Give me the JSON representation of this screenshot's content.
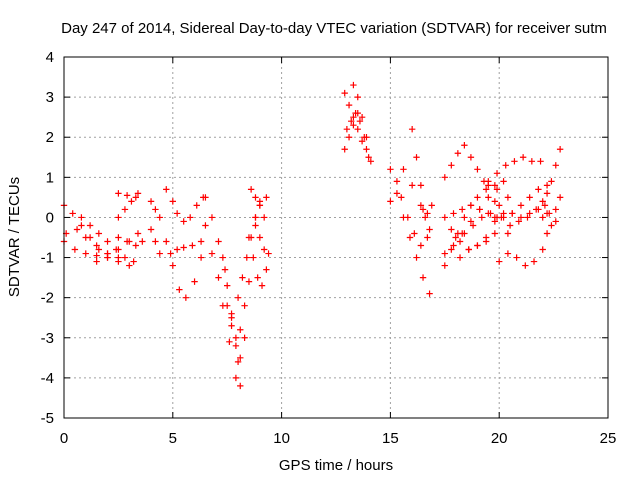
{
  "chart_data": {
    "type": "scatter",
    "title": "Day 247 of 2014, Sidereal Day-to-day VTEC variation (SDTVAR) for receiver sutm",
    "xlabel": "GPS time / hours",
    "ylabel": "SDTVAR / TECUs",
    "xlim": [
      0,
      25
    ],
    "ylim": [
      -5,
      4
    ],
    "xticks": [
      0,
      5,
      10,
      15,
      20,
      25
    ],
    "yticks": [
      -5,
      -4,
      -3,
      -2,
      -1,
      0,
      1,
      2,
      3,
      4
    ],
    "grid": true,
    "marker": "+",
    "colors": {
      "series": "#ff0000",
      "grid": "#a0a0a0",
      "axis": "#000000"
    },
    "tracks": [
      {
        "name": "t01",
        "x": [
          0.0,
          0.4,
          0.8,
          1.2,
          1.6,
          2.0
        ],
        "y": [
          0.3,
          0.1,
          -0.2,
          -0.5,
          -0.8,
          -0.9
        ]
      },
      {
        "name": "t02",
        "x": [
          0.0,
          0.5,
          1.0,
          1.5,
          2.0,
          2.5
        ],
        "y": [
          -0.6,
          -0.8,
          -0.9,
          -0.95,
          -1.0,
          -1.1
        ]
      },
      {
        "name": "t03",
        "x": [
          0.1,
          0.6,
          1.0,
          1.5,
          2.0,
          2.5,
          3.0
        ],
        "y": [
          -0.4,
          -0.3,
          -0.5,
          -0.7,
          -0.9,
          -1.0,
          -1.2
        ]
      },
      {
        "name": "t04",
        "x": [
          0.8,
          1.2,
          1.6,
          2.0,
          2.4,
          2.8,
          3.2
        ],
        "y": [
          0.0,
          -0.2,
          -0.4,
          -0.6,
          -0.8,
          -1.0,
          -1.1
        ]
      },
      {
        "name": "t05",
        "x": [
          1.5,
          2.0,
          2.5,
          3.0,
          3.4
        ],
        "y": [
          -1.1,
          -1.0,
          -0.8,
          -0.6,
          -0.4
        ]
      },
      {
        "name": "t06",
        "x": [
          2.5,
          2.8,
          3.1,
          3.4
        ],
        "y": [
          0.0,
          0.2,
          0.4,
          0.6
        ]
      },
      {
        "name": "t07",
        "x": [
          2.5,
          2.9,
          3.3,
          3.6
        ],
        "y": [
          -0.5,
          -0.6,
          -0.7,
          -0.6
        ]
      },
      {
        "name": "t08",
        "x": [
          2.5,
          2.9,
          3.3
        ],
        "y": [
          0.6,
          0.55,
          0.5
        ]
      },
      {
        "name": "t09",
        "x": [
          4.0,
          4.2,
          4.4
        ],
        "y": [
          0.4,
          0.2,
          0.0
        ]
      },
      {
        "name": "t10",
        "x": [
          4.0,
          4.2,
          4.4
        ],
        "y": [
          -0.3,
          -0.6,
          -0.9
        ]
      },
      {
        "name": "t11",
        "x": [
          4.7,
          5.0,
          5.3,
          5.6,
          6.0,
          6.3
        ],
        "y": [
          -0.6,
          -1.2,
          -1.8,
          -2.0,
          -1.6,
          -1.0
        ]
      },
      {
        "name": "t12",
        "x": [
          4.9,
          5.2,
          5.5,
          5.9,
          6.3
        ],
        "y": [
          -0.9,
          -0.8,
          -0.75,
          -0.7,
          -0.6
        ]
      },
      {
        "name": "t13",
        "x": [
          4.7,
          5.0,
          5.2,
          5.5,
          5.8,
          6.1,
          6.4
        ],
        "y": [
          0.7,
          0.4,
          0.1,
          -0.1,
          0.0,
          0.3,
          0.5
        ]
      },
      {
        "name": "t14",
        "x": [
          6.5,
          6.8,
          7.1,
          7.4,
          7.7,
          8.0
        ],
        "y": [
          0.5,
          0.0,
          -0.6,
          -1.3,
          -2.4,
          -3.6
        ]
      },
      {
        "name": "t15",
        "x": [
          6.5,
          6.8,
          7.1,
          7.3,
          7.6,
          7.9,
          8.1
        ],
        "y": [
          -0.2,
          -0.9,
          -1.5,
          -2.2,
          -3.1,
          -4.0,
          -4.2
        ]
      },
      {
        "name": "t16",
        "x": [
          7.3,
          7.5,
          7.7,
          7.9,
          8.1,
          8.3
        ],
        "y": [
          -1.0,
          -1.7,
          -2.5,
          -3.2,
          -3.5,
          -3.0
        ]
      },
      {
        "name": "t17",
        "x": [
          7.5,
          7.7,
          7.9,
          8.1,
          8.3,
          8.5
        ],
        "y": [
          -2.2,
          -2.7,
          -3.0,
          -2.8,
          -2.2,
          -1.6
        ]
      },
      {
        "name": "t18",
        "x": [
          8.0,
          8.2,
          8.4,
          8.6,
          8.8,
          9.0
        ],
        "y": [
          -2.0,
          -1.5,
          -1.0,
          -0.5,
          0.0,
          0.4
        ]
      },
      {
        "name": "t19",
        "x": [
          8.6,
          8.8,
          9.0,
          9.2
        ],
        "y": [
          0.7,
          0.5,
          0.3,
          0.0
        ]
      },
      {
        "name": "t20",
        "x": [
          8.5,
          8.7,
          8.9,
          9.1,
          9.3
        ],
        "y": [
          -0.5,
          -1.0,
          -1.5,
          -1.7,
          -1.3
        ]
      },
      {
        "name": "t21",
        "x": [
          8.8,
          9.0,
          9.2,
          9.4
        ],
        "y": [
          -0.2,
          -0.5,
          -0.8,
          -0.9
        ]
      },
      {
        "name": "t22",
        "x": [
          8.8,
          9.0,
          9.3
        ],
        "y": [
          0.0,
          0.3,
          0.5
        ]
      },
      {
        "name": "t23",
        "x": [
          12.9,
          13.1,
          13.3,
          13.5,
          13.7,
          13.9
        ],
        "y": [
          3.1,
          2.8,
          2.5,
          2.2,
          1.9,
          1.7
        ]
      },
      {
        "name": "t24",
        "x": [
          13.0,
          13.2,
          13.4,
          13.6,
          13.8,
          14.0
        ],
        "y": [
          2.2,
          2.4,
          2.6,
          2.4,
          2.0,
          1.5
        ]
      },
      {
        "name": "t25",
        "x": [
          12.9,
          13.1,
          13.3,
          13.5
        ],
        "y": [
          1.7,
          2.0,
          2.3,
          2.6
        ]
      },
      {
        "name": "t26",
        "x": [
          13.3,
          13.5,
          13.7,
          13.9,
          14.1
        ],
        "y": [
          3.3,
          3.0,
          2.5,
          2.0,
          1.4
        ]
      },
      {
        "name": "t27",
        "x": [
          15.0,
          15.3,
          15.6,
          15.9,
          16.2,
          16.5,
          16.8
        ],
        "y": [
          1.2,
          0.6,
          0.0,
          -0.5,
          -1.0,
          -1.5,
          -1.9
        ]
      },
      {
        "name": "t28",
        "x": [
          15.0,
          15.3,
          15.6,
          16.0,
          16.4,
          16.8
        ],
        "y": [
          0.4,
          0.9,
          1.2,
          0.8,
          0.3,
          -0.3
        ]
      },
      {
        "name": "t29",
        "x": [
          15.5,
          15.8,
          16.1,
          16.4,
          16.7
        ],
        "y": [
          0.5,
          0.0,
          -0.4,
          -0.7,
          -0.5
        ]
      },
      {
        "name": "t30",
        "x": [
          16.0,
          16.2,
          16.4,
          16.6
        ],
        "y": [
          2.2,
          1.5,
          0.8,
          0.0
        ]
      },
      {
        "name": "t31",
        "x": [
          16.5,
          16.7,
          16.9
        ],
        "y": [
          0.2,
          0.1,
          0.3
        ]
      },
      {
        "name": "t32",
        "x": [
          17.5,
          17.8,
          18.1,
          18.4,
          18.7,
          19.0,
          19.3
        ],
        "y": [
          1.0,
          1.3,
          1.6,
          1.8,
          1.5,
          1.2,
          0.9
        ]
      },
      {
        "name": "t33",
        "x": [
          17.5,
          17.8,
          18.1,
          18.4,
          18.7,
          19.0,
          19.4,
          19.8
        ],
        "y": [
          -1.2,
          -0.8,
          -0.4,
          0.0,
          0.3,
          0.5,
          0.7,
          0.8
        ]
      },
      {
        "name": "t34",
        "x": [
          17.5,
          17.9,
          18.3,
          18.7,
          19.1,
          19.5,
          19.9
        ],
        "y": [
          0.0,
          0.1,
          0.2,
          0.3,
          0.2,
          0.1,
          0.0
        ]
      },
      {
        "name": "t35",
        "x": [
          17.5,
          17.9,
          18.3,
          18.7,
          19.1,
          19.5,
          19.9,
          20.2
        ],
        "y": [
          -0.9,
          -0.7,
          -0.4,
          -0.1,
          0.2,
          0.5,
          0.7,
          0.9
        ]
      },
      {
        "name": "t36",
        "x": [
          18.0,
          18.4,
          18.8,
          19.2,
          19.6,
          20.0,
          20.4
        ],
        "y": [
          -0.5,
          -0.4,
          -0.2,
          0.0,
          0.1,
          0.3,
          0.5
        ]
      },
      {
        "name": "t37",
        "x": [
          17.8,
          18.2,
          18.6,
          19.0,
          19.4
        ],
        "y": [
          -0.3,
          -0.6,
          -0.8,
          -0.7,
          -0.5
        ]
      },
      {
        "name": "t38",
        "x": [
          18.2,
          18.6,
          19.0,
          19.4,
          19.8
        ],
        "y": [
          -1.0,
          -0.8,
          -0.7,
          -0.6,
          -0.4
        ]
      },
      {
        "name": "t39",
        "x": [
          19.5,
          19.9,
          20.3,
          20.7,
          21.1,
          21.5,
          21.9
        ],
        "y": [
          0.9,
          1.1,
          1.3,
          1.4,
          1.5,
          1.4,
          1.4
        ]
      },
      {
        "name": "t40",
        "x": [
          19.8,
          20.2,
          20.6,
          21.0,
          21.4,
          21.8,
          22.2
        ],
        "y": [
          0.0,
          0.1,
          0.1,
          0.0,
          0.1,
          0.2,
          0.1
        ]
      },
      {
        "name": "t41",
        "x": [
          19.8,
          20.2,
          20.6,
          21.0,
          21.4,
          21.8,
          22.2
        ],
        "y": [
          -0.1,
          0.0,
          0.1,
          0.3,
          0.5,
          0.7,
          0.8
        ]
      },
      {
        "name": "t42",
        "x": [
          19.5,
          19.8,
          20.1,
          20.4
        ],
        "y": [
          0.8,
          0.4,
          0.0,
          -0.4
        ]
      },
      {
        "name": "t43",
        "x": [
          20.0,
          20.4,
          20.8,
          21.2,
          21.6,
          22.0
        ],
        "y": [
          -1.1,
          -0.9,
          -1.0,
          -1.2,
          -1.1,
          -0.8
        ]
      },
      {
        "name": "t44",
        "x": [
          20.5,
          20.9,
          21.3,
          21.7,
          22.1
        ],
        "y": [
          -0.2,
          -0.1,
          0.0,
          0.2,
          0.3
        ]
      },
      {
        "name": "t45",
        "x": [
          22.0,
          22.2,
          22.4,
          22.6,
          22.8
        ],
        "y": [
          0.4,
          0.6,
          0.9,
          1.3,
          1.7
        ]
      },
      {
        "name": "t46",
        "x": [
          22.2,
          22.4,
          22.6,
          22.8
        ],
        "y": [
          -0.4,
          -0.2,
          0.2,
          0.5
        ]
      },
      {
        "name": "t47",
        "x": [
          22.0,
          22.3,
          22.6
        ],
        "y": [
          0.0,
          0.1,
          -0.1
        ]
      }
    ]
  }
}
